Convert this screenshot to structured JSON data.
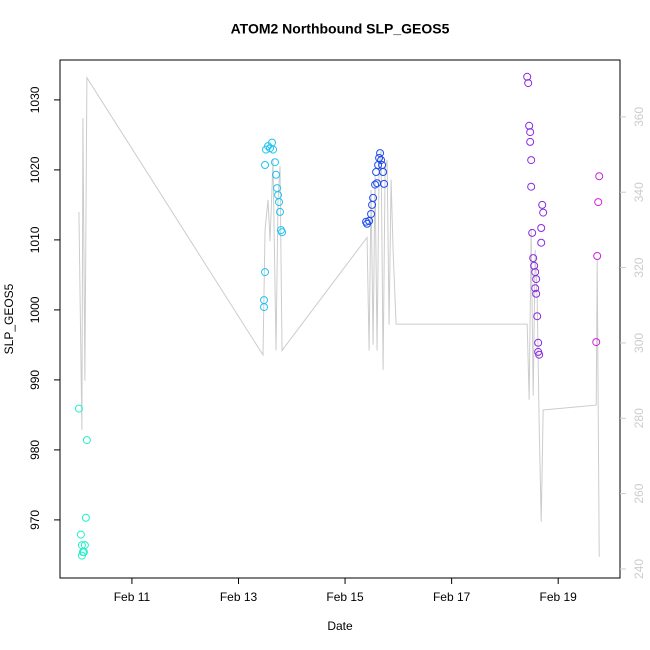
{
  "chart_data": {
    "type": "scatter",
    "title": "ATOM2 Northbound SLP_GEOS5",
    "xlabel": "Date",
    "ylabel": "SLP_GEOS5",
    "xlim": [
      9.65,
      20.16
    ],
    "ylim": [
      961.7,
      1035.7
    ],
    "y2lim": [
      237.6,
      375.1
    ],
    "xticks": [
      {
        "value": 11,
        "label": "Feb 11"
      },
      {
        "value": 13,
        "label": "Feb 13"
      },
      {
        "value": 15,
        "label": "Feb 15"
      },
      {
        "value": 17,
        "label": "Feb 17"
      },
      {
        "value": 19,
        "label": "Feb 19"
      }
    ],
    "yticks": [
      970,
      980,
      990,
      1000,
      1010,
      1020,
      1030
    ],
    "y2ticks": [
      240,
      260,
      280,
      300,
      320,
      340,
      360
    ],
    "series": [
      {
        "type": "scatter",
        "x": [
          10.005,
          10.042,
          10.061,
          10.061,
          10.08,
          10.099,
          10.117,
          10.136,
          10.155,
          13.479,
          13.479,
          13.498,
          13.498,
          13.516,
          13.554,
          13.592,
          13.629,
          13.648,
          13.685,
          13.704,
          13.723,
          13.742,
          13.761,
          13.779,
          13.798,
          13.817,
          15.394,
          15.413,
          15.451,
          15.488,
          15.507,
          15.526,
          15.563,
          15.582,
          15.601,
          15.62,
          15.639,
          15.657,
          15.676,
          15.695,
          15.714,
          15.732,
          18.418,
          18.437,
          18.455,
          18.474,
          18.474,
          18.493,
          18.493,
          18.512,
          18.531,
          18.549,
          18.568,
          18.568,
          18.587,
          18.587,
          18.606,
          18.624,
          18.624,
          18.643,
          18.681,
          18.681,
          18.7,
          18.718,
          19.714,
          19.732,
          19.751,
          19.77
        ],
        "values": [
          985.9,
          967.9,
          966.4,
          964.9,
          965.4,
          965.4,
          966.4,
          970.3,
          981.4,
          1001.4,
          1000.4,
          1005.4,
          1020.7,
          1022.9,
          1023.4,
          1023.1,
          1023.9,
          1022.9,
          1021.1,
          1019.3,
          1017.4,
          1016.4,
          1015.4,
          1014.0,
          1011.4,
          1011.1,
          1012.6,
          1012.3,
          1012.7,
          1013.7,
          1015.0,
          1016.0,
          1017.9,
          1019.7,
          1018.1,
          1020.7,
          1021.7,
          1022.4,
          1021.4,
          1020.7,
          1019.7,
          1018.0,
          1033.3,
          1032.4,
          1026.3,
          1025.4,
          1024.0,
          1021.4,
          1017.6,
          1011.0,
          1007.4,
          1006.3,
          1005.4,
          1003.1,
          1004.4,
          1002.3,
          999.1,
          995.3,
          994.0,
          993.6,
          1011.7,
          1009.6,
          1015.0,
          1013.9,
          995.4,
          1007.7,
          1015.4,
          1019.1
        ],
        "colors": [
          "#20f0c8",
          "#20f0c8",
          "#20f0c8",
          "#20f0c8",
          "#20f0c8",
          "#20f0c8",
          "#20f0c8",
          "#20f0c8",
          "#20f0c8",
          "#1ec4f2",
          "#1ec4f2",
          "#1ec4f2",
          "#1ec4f2",
          "#1ec4f2",
          "#1ec4f2",
          "#1ec4f2",
          "#1ec4f2",
          "#1ec4f2",
          "#1ec4f2",
          "#1ec4f2",
          "#1ec4f2",
          "#1ec4f2",
          "#1ec4f2",
          "#1ec4f2",
          "#1ec4f2",
          "#1ec4f2",
          "#1f4cf0",
          "#1f4cf0",
          "#1f4cf0",
          "#1f4cf0",
          "#1f4cf0",
          "#1f4cf0",
          "#1f4cf0",
          "#1f4cf0",
          "#1f4cf0",
          "#1f4cf0",
          "#1f4cf0",
          "#1f4cf0",
          "#1f4cf0",
          "#1f4cf0",
          "#1f4cf0",
          "#1f4cf0",
          "#8a2be2",
          "#8a2be2",
          "#8a2be2",
          "#8a2be2",
          "#8a2be2",
          "#8a2be2",
          "#8a2be2",
          "#8a2be2",
          "#8a2be2",
          "#8a2be2",
          "#8a2be2",
          "#8a2be2",
          "#8a2be2",
          "#8a2be2",
          "#8a2be2",
          "#8a2be2",
          "#8a2be2",
          "#8a2be2",
          "#8a2be2",
          "#8a2be2",
          "#8a2be2",
          "#8a2be2",
          "#cc22dd",
          "#cc22dd",
          "#cc22dd",
          "#cc22dd"
        ]
      },
      {
        "type": "line",
        "axis": "y2",
        "color": "#cccccc",
        "x": [
          10.005,
          10.061,
          10.08,
          10.117,
          10.155,
          13.46,
          13.498,
          13.554,
          13.592,
          13.648,
          13.704,
          13.742,
          13.779,
          13.817,
          13.854,
          15.413,
          15.451,
          15.488,
          15.526,
          15.563,
          15.601,
          15.639,
          15.676,
          15.714,
          15.751,
          15.789,
          15.826,
          15.864,
          15.901,
          15.958,
          18.418,
          18.455,
          18.493,
          18.531,
          18.568,
          18.606,
          18.643,
          18.681,
          18.718,
          19.714,
          19.732,
          19.77
        ],
        "values": [
          334.8,
          276.9,
          359.7,
          290.0,
          370.4,
          296.8,
          330.0,
          338.0,
          327.0,
          348.6,
          298.0,
          338.0,
          347.0,
          298.0,
          298.7,
          328.0,
          298.0,
          340.6,
          299.5,
          344.6,
          298.0,
          347.0,
          351.0,
          292.8,
          346.0,
          348.6,
          304.8,
          343.3,
          324.7,
          305.0,
          305.0,
          284.9,
          330.0,
          286.0,
          324.7,
          311.4,
          278.2,
          252.5,
          282.2,
          283.5,
          322.0,
          243.2
        ]
      }
    ]
  }
}
